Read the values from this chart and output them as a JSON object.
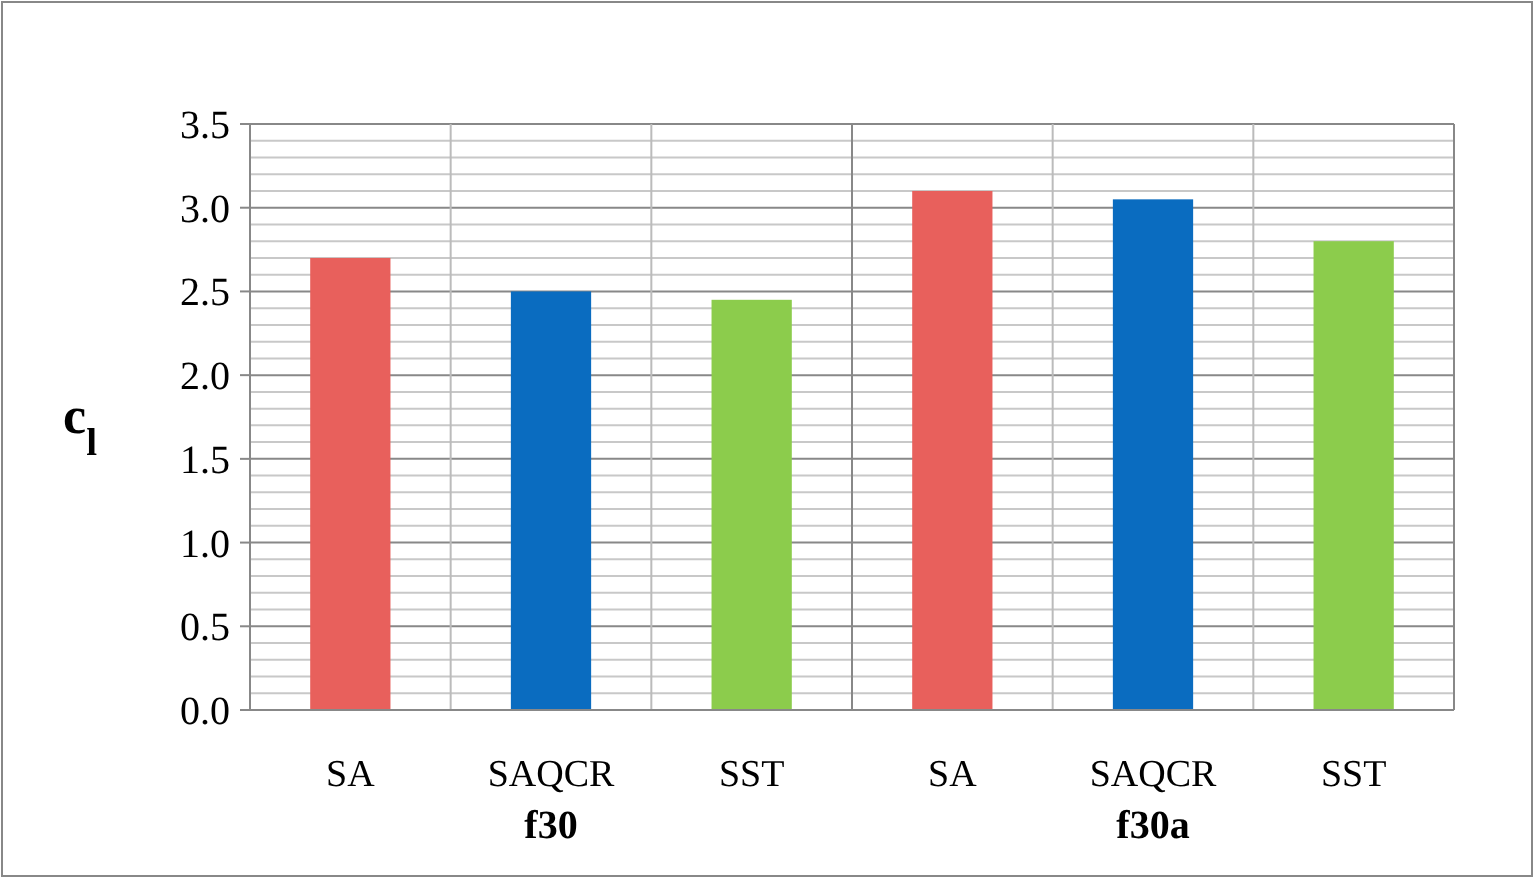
{
  "chart_data": {
    "type": "bar",
    "ylabel": "c$_{l}$",
    "categories": [
      "SA",
      "SAQCR",
      "SST",
      "SA",
      "SAQCR",
      "SST"
    ],
    "values": [
      2.7,
      2.5,
      2.45,
      3.1,
      3.05,
      2.8
    ],
    "colors": [
      "#e8605c",
      "#0a6cc0",
      "#8ccc4c",
      "#e8605c",
      "#0a6cc0",
      "#8ccc4c"
    ],
    "ylim": [
      0,
      3.5
    ],
    "yticks": [
      {
        "value": 0,
        "label": "0.0"
      },
      {
        "value": 0.5,
        "label": "0.5"
      },
      {
        "value": 1,
        "label": "1.0"
      },
      {
        "value": 1.5,
        "label": "1.5"
      },
      {
        "value": 2,
        "label": "2.0"
      },
      {
        "value": 2.5,
        "label": "2.5"
      },
      {
        "value": 3,
        "label": "3.0"
      },
      {
        "value": 3.5,
        "label": "3.5"
      }
    ],
    "grid": true,
    "annotations": [
      "f30",
      "f30a"
    ]
  }
}
